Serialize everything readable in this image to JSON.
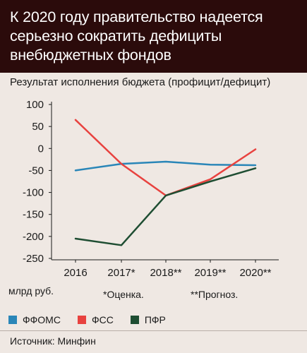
{
  "chart_data": {
    "type": "line",
    "title": "К 2020 году правительство надеется серьезно сократить дефициты внебюджетных фондов",
    "subtitle": "Результат исполнения бюджета (профицит/дефицит)",
    "categories": [
      "2016",
      "2017*",
      "2018**",
      "2019**",
      "2020**"
    ],
    "yticks": [
      100,
      50,
      0,
      -50,
      -100,
      -150,
      -200,
      -250
    ],
    "ylim": [
      -250,
      100
    ],
    "ylabel": "млрд руб.",
    "grid": false,
    "legend_position": "bottom",
    "series": [
      {
        "name": "ФФОМС",
        "color": "#2a86b8",
        "values": [
          -50,
          -35,
          -30,
          -37,
          -38
        ]
      },
      {
        "name": "ФСС",
        "color": "#e8423f",
        "values": [
          65,
          -35,
          -107,
          -70,
          -2
        ]
      },
      {
        "name": "ПФР",
        "color": "#1e4d32",
        "values": [
          -205,
          -220,
          -107,
          -75,
          -45
        ]
      }
    ],
    "notes": [
      "*Оценка.",
      "**Прогноз."
    ]
  },
  "source": "Источник: Минфин"
}
